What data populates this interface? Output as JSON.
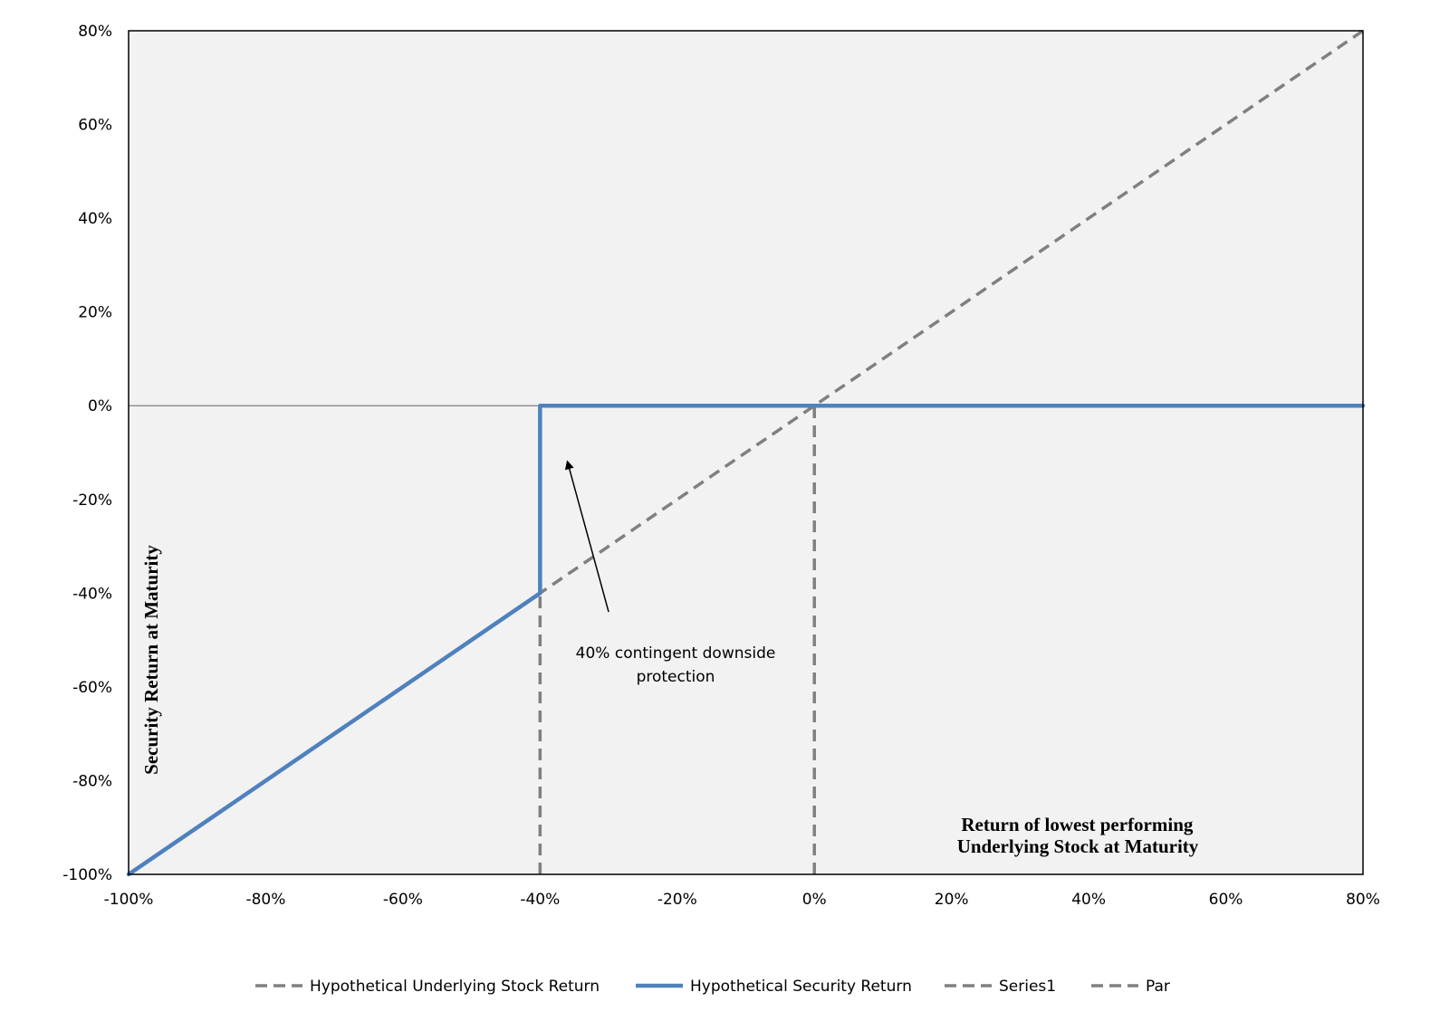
{
  "chart_data": {
    "type": "line",
    "xlabel_lines": [
      "Return of lowest performing",
      "Underlying Stock at Maturity"
    ],
    "ylabel": "Security Return at Maturity",
    "xlim": [
      -100,
      80
    ],
    "ylim": [
      -100,
      80
    ],
    "x_ticks": [
      -100,
      -80,
      -60,
      -40,
      -20,
      0,
      20,
      40,
      60,
      80
    ],
    "y_ticks": [
      -100,
      -80,
      -60,
      -40,
      -20,
      0,
      20,
      40,
      60,
      80
    ],
    "x_tick_labels": [
      "-100%",
      "-80%",
      "-60%",
      "-40%",
      "-20%",
      "0%",
      "20%",
      "40%",
      "60%",
      "80%"
    ],
    "y_tick_labels": [
      "-100%",
      "-80%",
      "-60%",
      "-40%",
      "-20%",
      "0%",
      "20%",
      "40%",
      "60%",
      "80%"
    ],
    "plot_background": "#f2f2f2",
    "zero_line": true,
    "legend_position": "bottom",
    "series": [
      {
        "name": "Hypothetical Underlying Stock Return",
        "style": "dashed",
        "color": "#808080",
        "points": [
          [
            -100,
            -100
          ],
          [
            80,
            80
          ]
        ]
      },
      {
        "name": "Hypothetical Security Return",
        "style": "solid",
        "color": "#4f81bd",
        "points": [
          [
            -100,
            -100
          ],
          [
            -40,
            -40
          ],
          [
            -40,
            0
          ],
          [
            80,
            0
          ]
        ]
      },
      {
        "name": "Series1",
        "style": "dashed",
        "color": "#808080",
        "points": [
          [
            -40,
            -100
          ],
          [
            -40,
            -40
          ]
        ]
      },
      {
        "name": "Par",
        "style": "dashed",
        "color": "#808080",
        "points": [
          [
            0,
            -100
          ],
          [
            0,
            0
          ]
        ]
      }
    ],
    "annotations": [
      {
        "text_lines": [
          "40% contingent downside",
          "protection"
        ],
        "arrow_from": [
          -30,
          -44
        ],
        "arrow_to": [
          -36,
          -12
        ]
      }
    ]
  }
}
